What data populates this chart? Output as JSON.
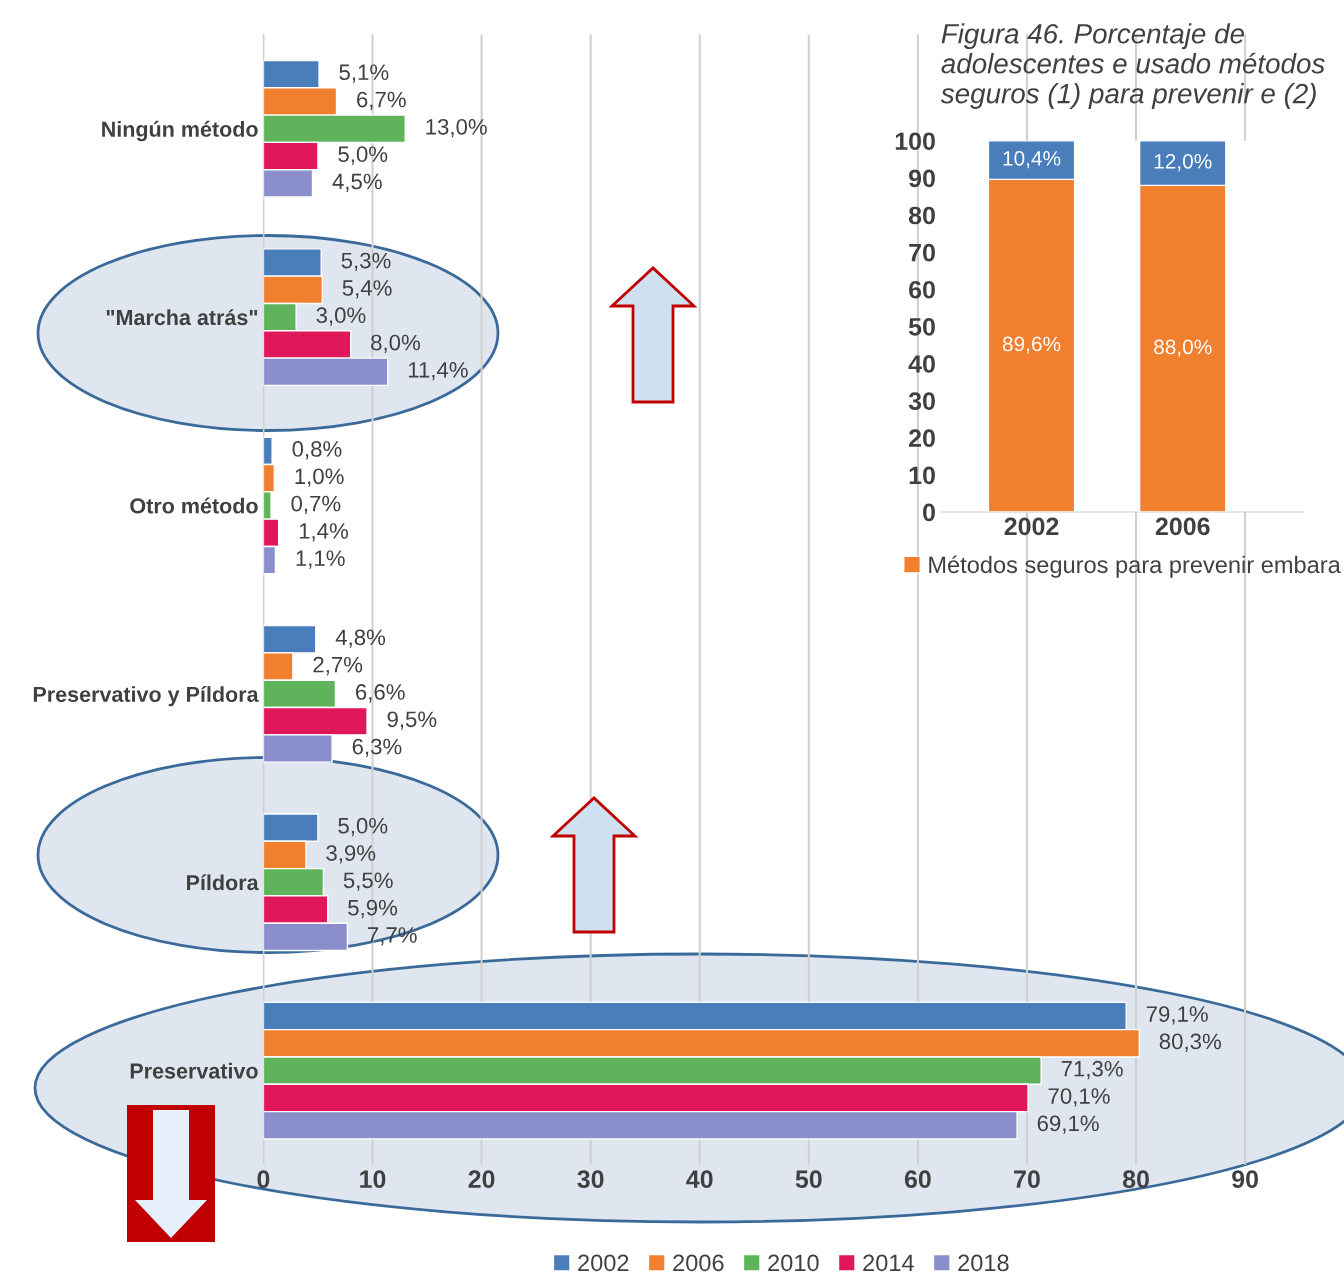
{
  "chart_data": [
    {
      "type": "bar",
      "orientation": "horizontal",
      "categories": [
        "Ningún método",
        "\"Marcha atrás\"",
        "Otro método",
        "Preservativo y Píldora",
        "Píldora",
        "Preservativo"
      ],
      "series": [
        {
          "name": "2002",
          "color": "#4a7ebb",
          "values": [
            5.1,
            5.3,
            0.8,
            4.8,
            5.0,
            79.1
          ],
          "value_labels": [
            "5,1%",
            "5,3%",
            "0,8%",
            "4,8%",
            "5,0%",
            "79,1%"
          ]
        },
        {
          "name": "2006",
          "color": "#f07f2e",
          "values": [
            6.7,
            5.4,
            1.0,
            2.7,
            3.9,
            80.3
          ],
          "value_labels": [
            "6,7%",
            "5,4%",
            "1,0%",
            "2,7%",
            "3,9%",
            "80,3%"
          ]
        },
        {
          "name": "2010",
          "color": "#5fb35a",
          "values": [
            13.0,
            3.0,
            0.7,
            6.6,
            5.5,
            71.3
          ],
          "value_labels": [
            "13,0%",
            "3,0%",
            "0,7%",
            "6,6%",
            "5,5%",
            "71,3%"
          ]
        },
        {
          "name": "2014",
          "color": "#e0185a",
          "values": [
            5.0,
            8.0,
            1.4,
            9.5,
            5.9,
            70.1
          ],
          "value_labels": [
            "5,0%",
            "8,0%",
            "1,4%",
            "9,5%",
            "5,9%",
            "70,1%"
          ]
        },
        {
          "name": "2018",
          "color": "#8a8fcc",
          "values": [
            4.5,
            11.4,
            1.1,
            6.3,
            7.7,
            69.1
          ],
          "value_labels": [
            "4,5%",
            "11,4%",
            "1,1%",
            "6,3%",
            "7,7%",
            "69,1%"
          ]
        }
      ],
      "xlim": [
        0,
        95
      ],
      "xticks": [
        0,
        10,
        20,
        30,
        40,
        50,
        60,
        70,
        80,
        90
      ],
      "grid": "x",
      "legend": "bottom"
    },
    {
      "type": "bar",
      "stacked": true,
      "title": "Figura 46. Porcentaje de adolescentes e usado métodos seguros (1) para prevenir e (2)",
      "categories": [
        "2002",
        "2006"
      ],
      "series": [
        {
          "name": "Métodos seguros para prevenir embara",
          "color": "#f07f2e",
          "values": [
            89.6,
            88.0
          ],
          "value_labels": [
            "89,6%",
            "88,0%"
          ]
        },
        {
          "color": "#4a7ebb",
          "values": [
            10.4,
            12.0
          ],
          "value_labels": [
            "10,4%",
            "12,0%"
          ]
        }
      ],
      "ylim": [
        0,
        100
      ],
      "yticks": [
        0,
        10,
        20,
        30,
        40,
        50,
        60,
        70,
        80,
        90,
        100
      ],
      "grid": false,
      "legend": "bottom"
    }
  ]
}
